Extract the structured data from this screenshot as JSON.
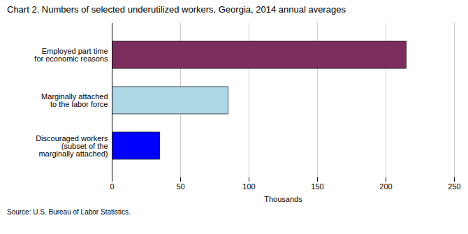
{
  "chart_data": {
    "type": "bar",
    "orientation": "horizontal",
    "title": "Chart 2. Numbers of selected underutilized workers, Georgia, 2014  annual averages",
    "categories": [
      "Employed part time\nfor economic reasons",
      "Marginally attached\nto the labor force",
      "Discouraged workers\n(subset of the\nmarginally attached)"
    ],
    "values": [
      215,
      85,
      35
    ],
    "colors": [
      "#7B2D5E",
      "#ADD8E6",
      "#0000FF"
    ],
    "xlim": [
      0,
      250
    ],
    "xticks": [
      0,
      50,
      100,
      150,
      200,
      250
    ],
    "xlabel": "Thousands",
    "caption": "Source: U.S. Bureau of Labor Statistics.",
    "grid": true
  }
}
